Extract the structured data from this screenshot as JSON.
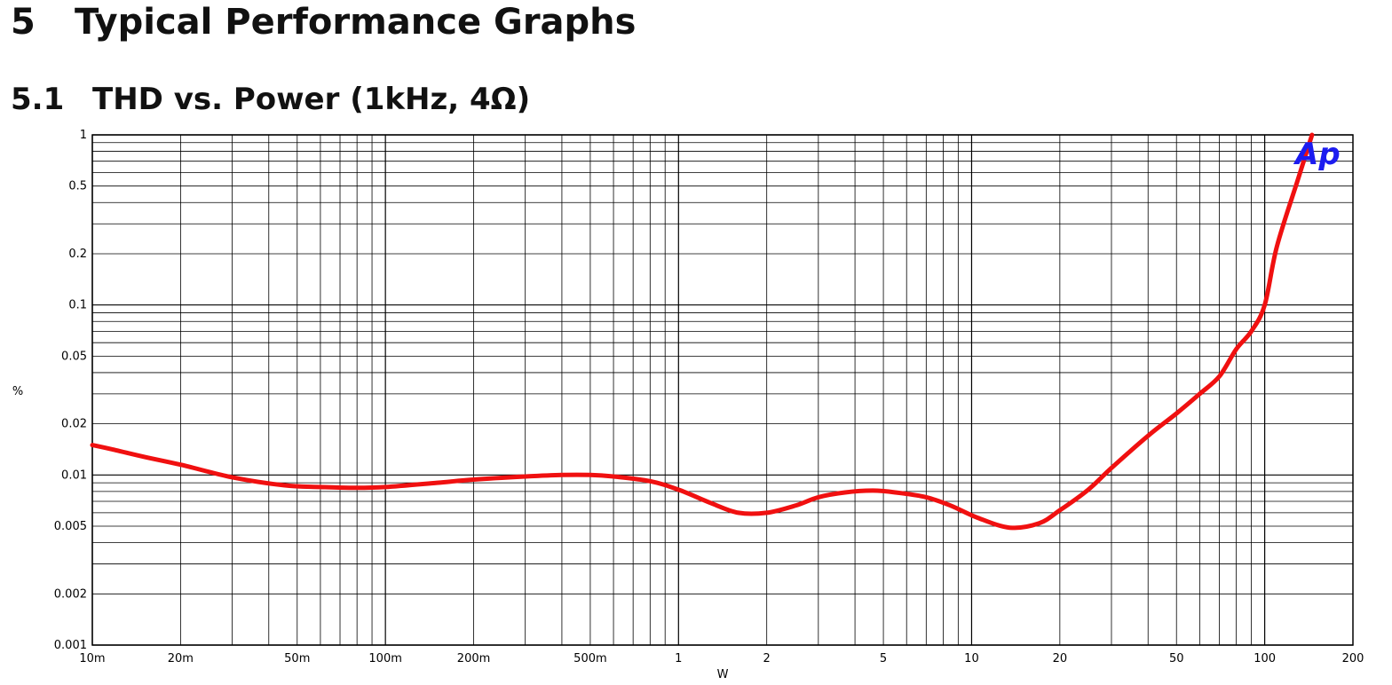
{
  "heading": {
    "number": "5",
    "text": "Typical Performance Graphs"
  },
  "subheading": {
    "number": "5.1",
    "text": "THD vs. Power (1kHz, 4Ω)"
  },
  "colors": {
    "curve": "#f01010",
    "grid": "#000000",
    "logo": "#1c1cf0"
  },
  "logo_text": "Ap",
  "chart_data": {
    "type": "line",
    "title": "THD vs. Power (1kHz, 4Ω)",
    "xlabel": "W",
    "ylabel": "%",
    "x_scale": "log",
    "y_scale": "log",
    "xlim": [
      0.01,
      200
    ],
    "ylim": [
      0.001,
      1
    ],
    "grid": true,
    "x_ticks": [
      {
        "v": 0.01,
        "label": "10m"
      },
      {
        "v": 0.02,
        "label": "20m"
      },
      {
        "v": 0.05,
        "label": "50m"
      },
      {
        "v": 0.1,
        "label": "100m"
      },
      {
        "v": 0.2,
        "label": "200m"
      },
      {
        "v": 0.5,
        "label": "500m"
      },
      {
        "v": 1,
        "label": "1"
      },
      {
        "v": 2,
        "label": "2"
      },
      {
        "v": 5,
        "label": "5"
      },
      {
        "v": 10,
        "label": "10"
      },
      {
        "v": 20,
        "label": "20"
      },
      {
        "v": 50,
        "label": "50"
      },
      {
        "v": 100,
        "label": "100"
      },
      {
        "v": 200,
        "label": "200"
      }
    ],
    "y_ticks": [
      {
        "v": 0.001,
        "label": "0.001"
      },
      {
        "v": 0.002,
        "label": "0.002"
      },
      {
        "v": 0.005,
        "label": "0.005"
      },
      {
        "v": 0.01,
        "label": "0.01"
      },
      {
        "v": 0.02,
        "label": "0.02"
      },
      {
        "v": 0.05,
        "label": "0.05"
      },
      {
        "v": 0.1,
        "label": "0.1"
      },
      {
        "v": 0.2,
        "label": "0.2"
      },
      {
        "v": 0.5,
        "label": "0.5"
      },
      {
        "v": 1,
        "label": "1"
      }
    ],
    "series": [
      {
        "x": [
          0.01,
          0.012,
          0.015,
          0.02,
          0.03,
          0.045,
          0.06,
          0.08,
          0.1,
          0.15,
          0.2,
          0.3,
          0.4,
          0.5,
          0.6,
          0.8,
          1.0,
          1.3,
          1.6,
          2.0,
          2.5,
          3.0,
          3.7,
          4.6,
          5.5,
          7.0,
          8.5,
          10.5,
          13.5,
          17,
          20,
          25,
          30,
          40,
          50,
          60,
          70,
          80,
          90,
          100,
          110,
          130,
          145
        ],
        "y": [
          0.015,
          0.014,
          0.0128,
          0.0115,
          0.0097,
          0.0087,
          0.0085,
          0.0084,
          0.0085,
          0.009,
          0.0094,
          0.0098,
          0.01,
          0.01,
          0.0098,
          0.0092,
          0.0082,
          0.0068,
          0.006,
          0.006,
          0.0066,
          0.0074,
          0.0079,
          0.0081,
          0.0079,
          0.0074,
          0.0066,
          0.0056,
          0.0049,
          0.0052,
          0.0062,
          0.0082,
          0.011,
          0.017,
          0.023,
          0.03,
          0.038,
          0.055,
          0.07,
          0.1,
          0.22,
          0.55,
          1.0
        ]
      }
    ]
  }
}
